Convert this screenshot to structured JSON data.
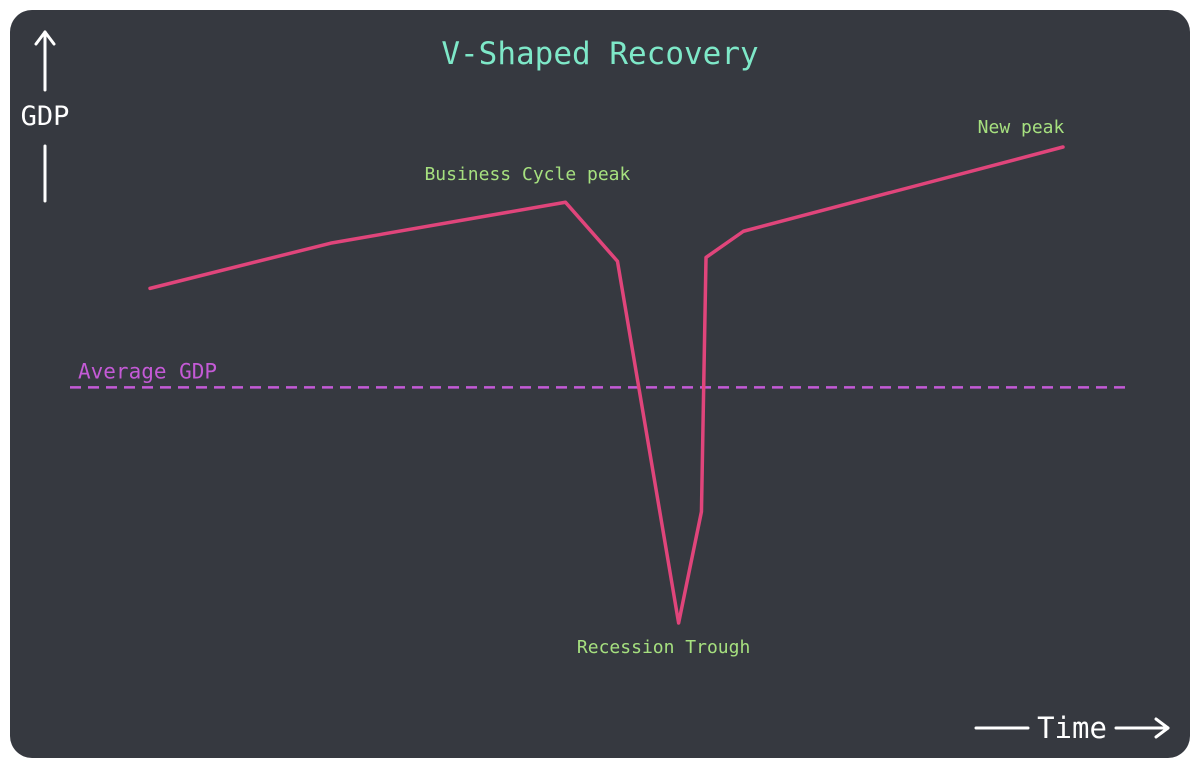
{
  "chart_data": {
    "type": "line",
    "title": "V-Shaped Recovery",
    "ylabel": "GDP",
    "xlabel": "Time",
    "grid": false,
    "legend": "none",
    "xlim": [
      0,
      100
    ],
    "ylim": [
      0,
      100
    ],
    "series": [
      {
        "name": "",
        "color": "#e0457b",
        "x": [
          0,
          19.8,
          45.5,
          51.2,
          57.9,
          60.4,
          60.9,
          65.0,
          100
        ],
        "y": [
          70.3,
          79.8,
          88.4,
          76.0,
          0,
          23.4,
          76.8,
          82.3,
          100
        ]
      }
    ],
    "reference_lines": [
      {
        "label": "Average GDP",
        "y": 49.5,
        "color": "#c45ad6",
        "style": "dashed"
      }
    ],
    "annotations": [
      {
        "text": "Business Cycle peak",
        "x": 45.5,
        "y": 88.4,
        "color": "#a6e07f"
      },
      {
        "text": "Recession Trough",
        "x": 57.9,
        "y": 0,
        "color": "#a6e07f"
      },
      {
        "text": "New peak",
        "x": 100,
        "y": 100,
        "color": "#a6e07f"
      }
    ],
    "colors": {
      "background": "#363940",
      "title": "#7ee8c8",
      "axis": "#ffffff"
    }
  }
}
